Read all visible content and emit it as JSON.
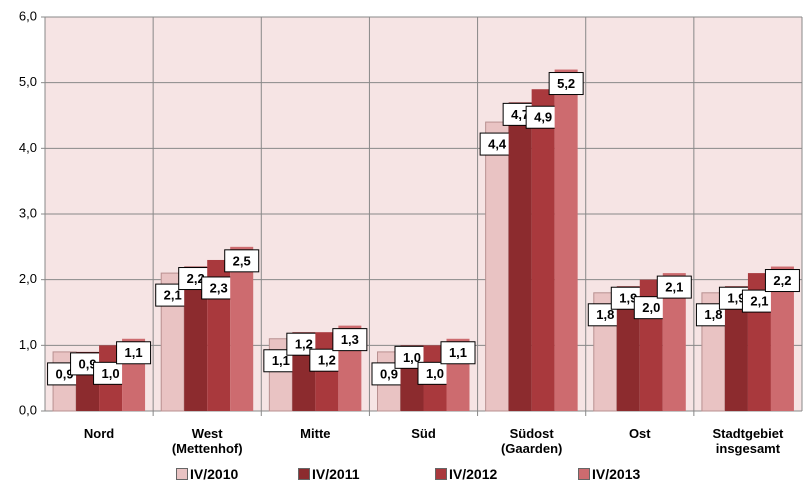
{
  "chart_data": {
    "type": "bar",
    "categories": [
      "Nord",
      "West (Mettenhof)",
      "Mitte",
      "Süd",
      "Südost (Gaarden)",
      "Ost",
      "Stadtgebiet insgesamt"
    ],
    "series": [
      {
        "name": "IV/2010",
        "color": "#e9c3c3",
        "values": [
          0.9,
          2.1,
          1.1,
          0.9,
          4.4,
          1.8,
          1.8
        ],
        "value_labels": [
          "0,9",
          "2,1",
          "1,1",
          "0,9",
          "4,4",
          "1,8",
          "1,8"
        ]
      },
      {
        "name": "IV/2011",
        "color": "#8c2b2e",
        "values": [
          0.9,
          2.2,
          1.2,
          1.0,
          4.7,
          1.9,
          1.9
        ],
        "value_labels": [
          "0,9",
          "2,2",
          "1,2",
          "1,0",
          "4,7",
          "1,9",
          "1,9"
        ]
      },
      {
        "name": "IV/2012",
        "color": "#a9393d",
        "values": [
          1.0,
          2.3,
          1.2,
          1.0,
          4.9,
          2.0,
          2.1
        ],
        "value_labels": [
          "1,0",
          "2,3",
          "1,2",
          "1,0",
          "4,9",
          "2,0",
          "2,1"
        ]
      },
      {
        "name": "IV/2013",
        "color": "#cd6b6f",
        "values": [
          1.1,
          2.5,
          1.3,
          1.1,
          5.2,
          2.1,
          2.2
        ],
        "value_labels": [
          "1,1",
          "2,5",
          "1,3",
          "1,1",
          "5,2",
          "2,1",
          "2,2"
        ]
      }
    ],
    "ylim": [
      0,
      6
    ],
    "yticks": [
      {
        "value": 0,
        "label": "0,0"
      },
      {
        "value": 1,
        "label": "1,0"
      },
      {
        "value": 2,
        "label": "2,0"
      },
      {
        "value": 3,
        "label": "3,0"
      },
      {
        "value": 4,
        "label": "4,0"
      },
      {
        "value": 5,
        "label": "5,0"
      },
      {
        "value": 6,
        "label": "6,0"
      }
    ],
    "grid": true,
    "legend": "bottom"
  }
}
